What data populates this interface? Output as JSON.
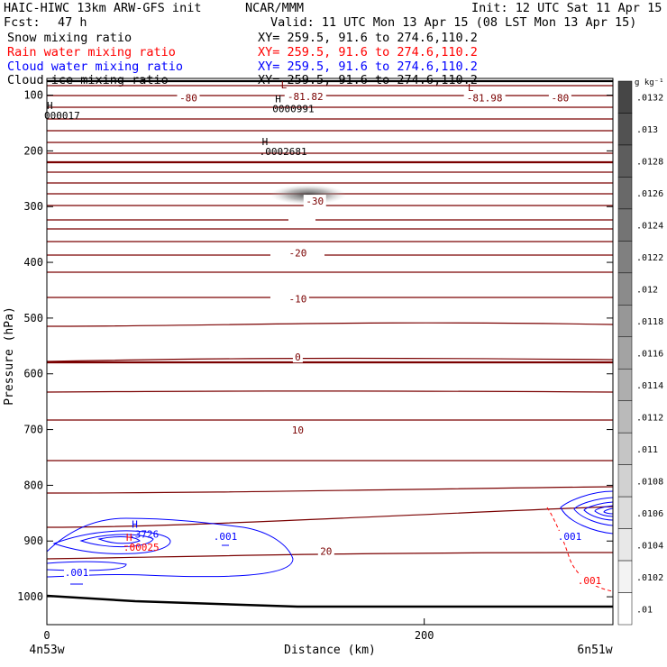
{
  "header": {
    "title_left": "HAIC-HIWC 13km ARW-GFS init",
    "org": "NCAR/MMM",
    "init": "Init: 12 UTC Sat 11 Apr 15",
    "fcst_label": "Fcst:",
    "fcst_value": "47 h",
    "valid": "Valid: 11 UTC Mon 13 Apr 15 (08 LST Mon 13 Apr 15)",
    "fields": [
      {
        "name": "Snow mixing ratio",
        "xy": "XY= 259.5, 91.6 to 274.6,110.2",
        "color": "#000000"
      },
      {
        "name": "Rain water mixing ratio",
        "xy": "XY= 259.5, 91.6 to 274.6,110.2",
        "color": "#ff0000"
      },
      {
        "name": "Cloud water mixing ratio",
        "xy": "XY= 259.5, 91.6 to 274.6,110.2",
        "color": "#0000ff"
      },
      {
        "name": "Cloud ice mixing ratio",
        "xy": "XY= 259.5, 91.6 to 274.6,110.2",
        "color": "#000000"
      }
    ]
  },
  "chart_data": {
    "type": "cross-section contour",
    "xlabel": "Distance (km)",
    "ylabel": "Pressure (hPa)",
    "xlim": [
      0,
      300
    ],
    "ylim": [
      1050,
      70
    ],
    "x_ticks": [
      0,
      200
    ],
    "y_ticks": [
      100,
      200,
      300,
      400,
      500,
      600,
      700,
      800,
      900,
      1000
    ],
    "x_endpoints": [
      "4n53w",
      "6n51w"
    ],
    "temperature_contour_labels": [
      {
        "value": "-80",
        "x": 75,
        "p": 105
      },
      {
        "value": "-81.82",
        "x": 137,
        "p": 102
      },
      {
        "value": "-81.98",
        "x": 232,
        "p": 105
      },
      {
        "value": "-80",
        "x": 272,
        "p": 105
      },
      {
        "value": "-30",
        "x": 142,
        "p": 290
      },
      {
        "value": "-20",
        "x": 133,
        "p": 383
      },
      {
        "value": "-10",
        "x": 133,
        "p": 465
      },
      {
        "value": "0",
        "x": 133,
        "p": 570
      },
      {
        "value": "10",
        "x": 133,
        "p": 701
      },
      {
        "value": "20",
        "x": 148,
        "p": 918
      }
    ],
    "extrema": [
      {
        "type": "L",
        "x": 124,
        "p": 88,
        "color": "#7a0000"
      },
      {
        "type": "L",
        "x": 223,
        "p": 93,
        "color": "#7a0000"
      },
      {
        "type": "H",
        "x": 121,
        "p": 113,
        "value": "0000991",
        "color": "#000000"
      },
      {
        "type": "H",
        "value": "000017",
        "x": 0,
        "p": 125,
        "color": "#000000"
      },
      {
        "type": "H",
        "x": 114,
        "p": 190,
        "value": ".0002681",
        "color": "#000000"
      },
      {
        "type": "H",
        "x": 45,
        "p": 876,
        "value": ".3726",
        "color": "#0000ff"
      },
      {
        "type": "H",
        "x": 42,
        "p": 900,
        "value": ".00025",
        "color": "#ff0000"
      }
    ],
    "cloud_water_labels": [
      ".001",
      ".001",
      ".001"
    ],
    "rain_labels": [
      ".001"
    ],
    "colorbar": {
      "unit": "g kg⁻¹",
      "ticks": [
        ".0132",
        ".013",
        ".0128",
        ".0126",
        ".0124",
        ".0122",
        ".012",
        ".0118",
        ".0116",
        ".0114",
        ".0112",
        ".011",
        ".0108",
        ".0106",
        ".0104",
        ".0102",
        ".01"
      ]
    }
  }
}
